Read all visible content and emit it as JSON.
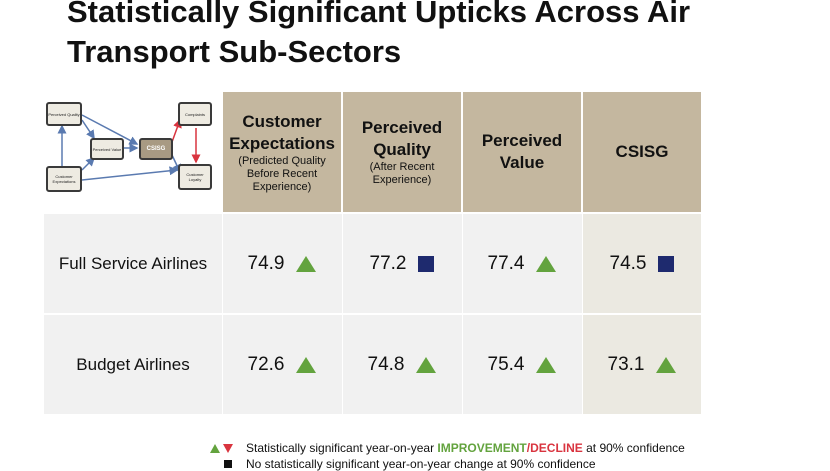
{
  "title": "Statistically Significant Upticks Across Air Transport Sub-Sectors",
  "diagram": {
    "perceived_quality": "Perceived Quality",
    "perceived_value": "Perceived Value",
    "csisg": "CSISG",
    "customer_expectations": "Customer Expectations",
    "complaints": "Complaints",
    "customer_loyalty": "Customer Loyalty"
  },
  "table": {
    "headers": [
      {
        "main": "Customer Expectations",
        "sub": "(Predicted Quality Before Recent Experience)"
      },
      {
        "main": "Perceived Quality",
        "sub": "(After Recent Experience)"
      },
      {
        "main": "Perceived Value",
        "sub": ""
      },
      {
        "main": "CSISG",
        "sub": ""
      }
    ],
    "rows": [
      {
        "label": "Full Service Airlines",
        "cells": [
          {
            "value": "74.9",
            "symbol": "up-triangle-icon"
          },
          {
            "value": "77.2",
            "symbol": "square-icon"
          },
          {
            "value": "77.4",
            "symbol": "up-triangle-icon"
          },
          {
            "value": "74.5",
            "symbol": "square-icon"
          }
        ]
      },
      {
        "label": "Budget Airlines",
        "cells": [
          {
            "value": "72.6",
            "symbol": "up-triangle-icon"
          },
          {
            "value": "74.8",
            "symbol": "up-triangle-icon"
          },
          {
            "value": "75.4",
            "symbol": "up-triangle-icon"
          },
          {
            "value": "73.1",
            "symbol": "up-triangle-icon"
          }
        ]
      }
    ]
  },
  "legend": {
    "line1_pre": "Statistically significant year-on-year ",
    "line1_improvement": "IMPROVEMENT",
    "line1_slash": "/",
    "line1_decline": "DECLINE",
    "line1_post": " at 90% confidence",
    "line2": "No statistically significant year-on-year change at 90% confidence"
  },
  "colors": {
    "header_bg": "#c4b79f",
    "improvement": "#63a33e",
    "decline": "#d9343f",
    "no_change": "#1e2a6e"
  }
}
